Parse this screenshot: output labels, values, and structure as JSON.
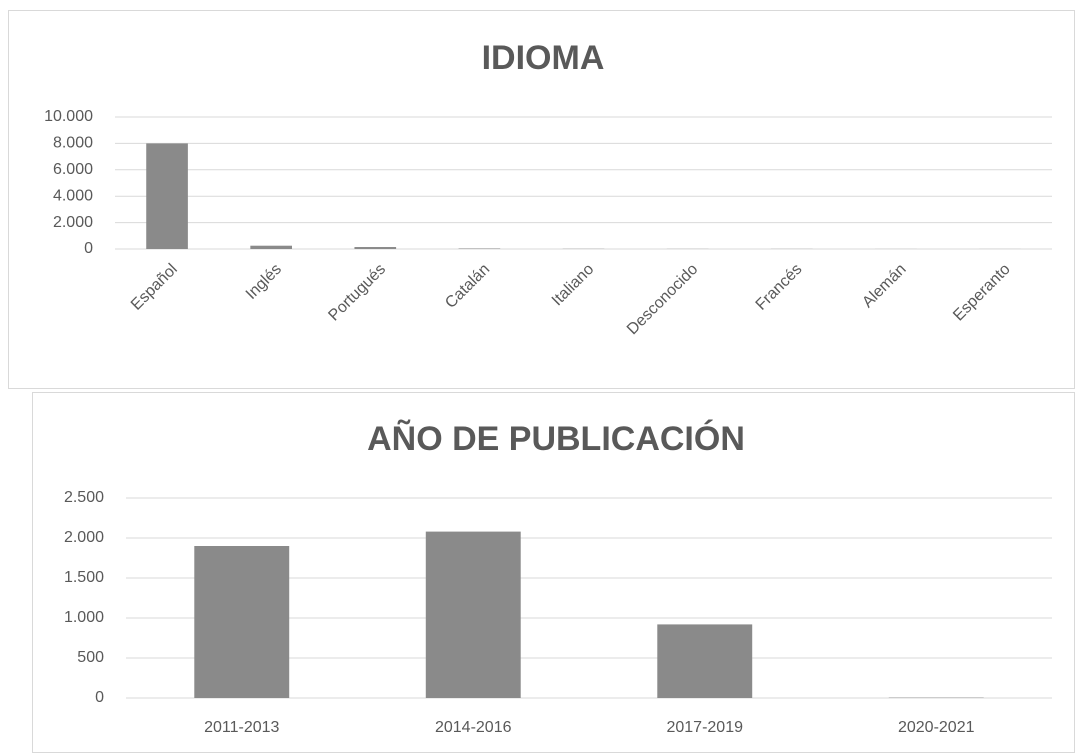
{
  "chart_data": [
    {
      "type": "bar",
      "title": "IDIOMA",
      "categories": [
        "Español",
        "Inglés",
        "Portugués",
        "Catalán",
        "Italiano",
        "Desconocido",
        "Francés",
        "Alemán",
        "Esperanto"
      ],
      "values": [
        8000,
        250,
        150,
        40,
        15,
        10,
        10,
        5,
        5
      ],
      "color": "#8a8a8a",
      "ylim": [
        0,
        10000
      ],
      "yticks": [
        0,
        {
          "value": 2000,
          "label": "2.000"
        },
        {
          "value": 4000,
          "label": "4.000"
        },
        {
          "value": 6000,
          "label": "6.000"
        },
        {
          "value": 8000,
          "label": "8.000"
        },
        {
          "value": 10000,
          "label": "10.000"
        }
      ],
      "grid": true
    },
    {
      "type": "bar",
      "title": "AÑO DE PUBLICACIÓN",
      "categories": [
        "2011-2013",
        "2014-2016",
        "2017-2019",
        "2020-2021"
      ],
      "values": [
        1900,
        2080,
        920,
        5
      ],
      "color": "#8a8a8a",
      "ylim": [
        0,
        2500
      ],
      "yticks": [
        0,
        500,
        {
          "value": 1000,
          "label": "1.000"
        },
        {
          "value": 1500,
          "label": "1.500"
        },
        {
          "value": 2000,
          "label": "2.000"
        },
        {
          "value": 2500,
          "label": "2.500"
        }
      ],
      "grid": true
    }
  ]
}
